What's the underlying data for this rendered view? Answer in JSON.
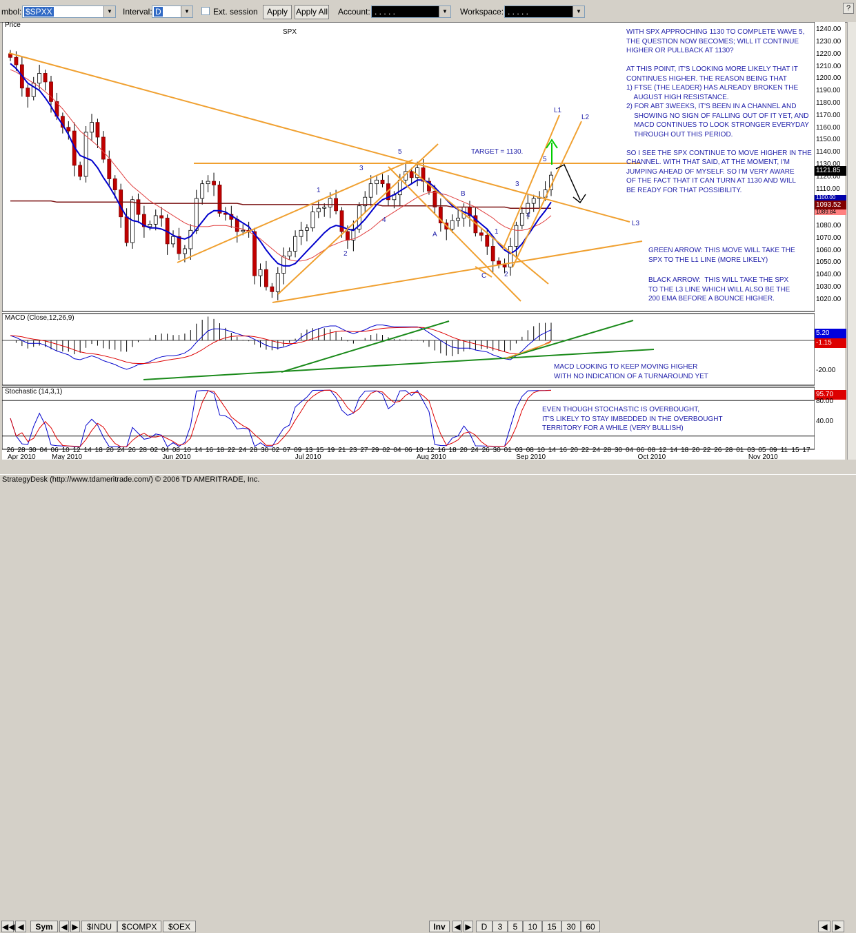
{
  "toolbar": {
    "symbol_label": "mbol:",
    "symbol_value": "$SPXX",
    "interval_label": "Interval:",
    "interval_value": "D",
    "ext_session_label": "Ext. session",
    "apply_label": "Apply",
    "apply_all_label": "Apply All",
    "account_label": "Account:",
    "account_value": ".   .   .   .   .",
    "workspace_label": "Workspace:",
    "workspace_value": ".   .   .   .   ."
  },
  "price_pane": {
    "title": "Price",
    "symbol": "SPX",
    "y_ticks": [
      "1240.00",
      "1230.00",
      "1220.00",
      "1210.00",
      "1200.00",
      "1190.00",
      "1180.00",
      "1170.00",
      "1160.00",
      "1150.00",
      "1140.00",
      "1130.00",
      "1120.00",
      "1110.00",
      "1100.00",
      "1090.00",
      "1080.00",
      "1070.00",
      "1060.00",
      "1050.00",
      "1040.00",
      "1030.00",
      "1020.00"
    ],
    "last_price": "1121.85",
    "ma_tag_1": "1093.52",
    "ma_tag_2": "1100.00",
    "ma_tag_3": "1089.84",
    "target_label": "TARGET = 1130.",
    "wave_labels": {
      "w1": "1",
      "w2": "2",
      "w3": "3",
      "w4": "4",
      "w5": "5",
      "wA": "A",
      "wB": "B",
      "wC": "C",
      "w1b": "1",
      "w2b": "2",
      "w3b": "3",
      "w4b": "4",
      "w5b": "5"
    },
    "line_labels": {
      "l1": "L1",
      "l2": "L2",
      "l3": "L3"
    },
    "note_main": "WITH SPX APPROCHING 1130 TO COMPLETE WAVE 5,\nTHE QUESTION NOW BECOMES; WILL IT CONTINUE\nHIGHER OR PULLBACK AT 1130?\n\nAT THIS POINT, IT'S LOOKING MORE LIKELY THAT IT\nCONTINUES HIGHER. THE REASON BEING THAT\n1) FTSE (THE LEADER) HAS ALREADY BROKEN THE\n    AUGUST HIGH RESISTANCE.\n2) FOR ABT 3WEEKS, IT'S BEEN IN A CHANNEL AND\n    SHOWING NO SIGN OF FALLING OUT OF IT YET, AND\n    MACD CONTINUES TO LOOK STRONGER EVERYDAY\n    THROUGH OUT THIS PERIOD.\n\nSO I SEE THE SPX CONTINUE TO MOVE HIGHER IN THE\nCHANNEL. WITH THAT SAID, AT THE MOMENT, I'M\nJUMPING AHEAD OF MYSELF. SO I'M VERY AWARE\nOF THE FACT THAT IT CAN TURN AT 1130 AND WILL\nBE READY FOR THAT POSSIBILITY.",
    "note_green": "GREEN ARROW: THIS MOVE WILL TAKE THE\nSPX TO THE L1 LINE (MORE LIKELY)",
    "note_black": "BLACK ARROW:  THIS WILL TAKE THE SPX\nTO THE L3 LINE WHICH WILL ALSO BE THE\n200 EMA BEFORE A BOUNCE HIGHER."
  },
  "macd_pane": {
    "title": "MACD (Close,12,26,9)",
    "value_1": "5.20",
    "value_2": "-1.15",
    "tick": "-20.00",
    "note": "MACD LOOKING TO KEEP MOVING HIGHER\nWITH NO INDICATION OF A TURNAROUND YET"
  },
  "stoch_pane": {
    "title": "Stochastic (14,3,1)",
    "value": "95.70",
    "tick_80": "80.00",
    "tick_40": "40.00",
    "note": "EVEN THOUGH STOCHASTIC IS OVERBOUGHT,\nIT'S LIKELY TO STAY IMBEDDED IN THE OVERBOUGHT\nTERRITORY FOR A WHILE (VERY BULLISH)"
  },
  "x_axis": {
    "days": [
      "26",
      "28",
      "30",
      "04",
      "06",
      "10",
      "12",
      "14",
      "18",
      "20",
      "24",
      "26",
      "28",
      "02",
      "04",
      "08",
      "10",
      "14",
      "16",
      "18",
      "22",
      "24",
      "28",
      "30",
      "02",
      "07",
      "09",
      "13",
      "15",
      "19",
      "21",
      "23",
      "27",
      "29",
      "02",
      "04",
      "06",
      "10",
      "12",
      "16",
      "18",
      "20",
      "24",
      "26",
      "30",
      "01",
      "03",
      "08",
      "10",
      "14",
      "16",
      "20",
      "22",
      "24",
      "28",
      "30",
      "04",
      "06",
      "08",
      "12",
      "14",
      "18",
      "20",
      "22",
      "26",
      "28",
      "01",
      "03",
      "05",
      "09",
      "11",
      "15",
      "17"
    ],
    "months": [
      "Apr 2010",
      "May 2010",
      "Jun 2010",
      "Jul 2010",
      "Aug 2010",
      "Sep 2010",
      "Oct 2010",
      "Nov 2010"
    ]
  },
  "tabs": {
    "sym": "Sym",
    "indu": "$INDU",
    "compx": "$COMPX",
    "oex": "$OEX",
    "inv": "Inv",
    "d": "D",
    "i3": "3",
    "i5": "5",
    "i10": "10",
    "i15": "15",
    "i30": "30",
    "i60": "60"
  },
  "status": "StrategyDesk (http://www.tdameritrade.com/) © 2006 TD AMERITRADE, Inc.",
  "chart_data": {
    "type": "candlestick",
    "title": "SPX",
    "ylim": [
      1012,
      1244
    ],
    "closes": [
      1218,
      1212,
      1193,
      1186,
      1197,
      1205,
      1198,
      1182,
      1170,
      1161,
      1158,
      1130,
      1121,
      1157,
      1165,
      1153,
      1135,
      1119,
      1110,
      1088,
      1067,
      1102,
      1090,
      1080,
      1082,
      1089,
      1087,
      1066,
      1072,
      1058,
      1062,
      1077,
      1103,
      1115,
      1117,
      1114,
      1091,
      1090,
      1086,
      1076,
      1077,
      1076,
      1040,
      1045,
      1031,
      1027,
      1042,
      1056,
      1060,
      1072,
      1077,
      1079,
      1092,
      1095,
      1096,
      1103,
      1093,
      1076,
      1069,
      1078,
      1097,
      1104,
      1115,
      1118,
      1115,
      1102,
      1106,
      1118,
      1125,
      1120,
      1128,
      1117,
      1109,
      1096,
      1083,
      1078,
      1085,
      1087,
      1096,
      1089,
      1075,
      1073,
      1064,
      1052,
      1049,
      1047,
      1064,
      1081,
      1091,
      1099,
      1103,
      1104,
      1110,
      1122
    ],
    "ema_blue": [
      1213,
      1209,
      1203,
      1197,
      1194,
      1191,
      1185,
      1178,
      1170,
      1163,
      1155,
      1145,
      1138,
      1136,
      1134,
      1128,
      1120,
      1113,
      1105,
      1096,
      1088,
      1085,
      1084,
      1081,
      1079,
      1079,
      1078,
      1076,
      1073,
      1071,
      1070,
      1072,
      1078,
      1084,
      1090,
      1093,
      1093,
      1092,
      1089,
      1086,
      1083,
      1080,
      1074,
      1068,
      1061,
      1055,
      1050,
      1048,
      1048,
      1050,
      1055,
      1060,
      1065,
      1070,
      1075,
      1079,
      1081,
      1080,
      1078,
      1077,
      1081,
      1086,
      1092,
      1098,
      1102,
      1104,
      1106,
      1109,
      1112,
      1115,
      1118,
      1118,
      1116,
      1112,
      1107,
      1102,
      1097,
      1094,
      1092,
      1090,
      1086,
      1082,
      1078,
      1072,
      1066,
      1061,
      1058,
      1061,
      1066,
      1073,
      1080,
      1087,
      1093,
      1100
    ],
    "ma_red": [
      1208,
      1206,
      1203,
      1200,
      1197,
      1194,
      1190,
      1186,
      1181,
      1176,
      1170,
      1164,
      1158,
      1154,
      1150,
      1146,
      1141,
      1136,
      1130,
      1124,
      1118,
      1113,
      1109,
      1105,
      1101,
      1098,
      1095,
      1092,
      1089,
      1086,
      1083,
      1081,
      1080,
      1080,
      1080,
      1081,
      1081,
      1081,
      1080,
      1079,
      1078,
      1076,
      1073,
      1070,
      1066,
      1062,
      1058,
      1055,
      1053,
      1052,
      1052,
      1053,
      1055,
      1058,
      1061,
      1064,
      1066,
      1068,
      1069,
      1070,
      1072,
      1075,
      1078,
      1082,
      1086,
      1089,
      1092,
      1095,
      1098,
      1101,
      1104,
      1106,
      1108,
      1108,
      1107,
      1106,
      1104,
      1102,
      1100,
      1098,
      1096,
      1093,
      1090,
      1087,
      1083,
      1080,
      1078,
      1077,
      1077,
      1078,
      1080,
      1082,
      1085,
      1089
    ],
    "ma200": [
      1101,
      1101,
      1101,
      1101,
      1101,
      1101,
      1101,
      1101,
      1100,
      1100,
      1100,
      1100,
      1100,
      1100,
      1100,
      1100,
      1100,
      1100,
      1100,
      1100,
      1100,
      1100,
      1099,
      1099,
      1099,
      1099,
      1099,
      1099,
      1099,
      1099,
      1099,
      1099,
      1099,
      1099,
      1099,
      1099,
      1099,
      1099,
      1099,
      1099,
      1098,
      1098,
      1098,
      1098,
      1098,
      1098,
      1098,
      1098,
      1098,
      1098,
      1098,
      1098,
      1098,
      1098,
      1098,
      1098,
      1098,
      1098,
      1098,
      1098,
      1098,
      1098,
      1098,
      1098,
      1097,
      1097,
      1097,
      1097,
      1097,
      1097,
      1097,
      1097,
      1097,
      1097,
      1097,
      1097,
      1096,
      1096,
      1096,
      1096,
      1096,
      1096,
      1096,
      1096,
      1096,
      1096,
      1095,
      1095,
      1095,
      1095,
      1095,
      1095,
      1095,
      1095
    ]
  }
}
